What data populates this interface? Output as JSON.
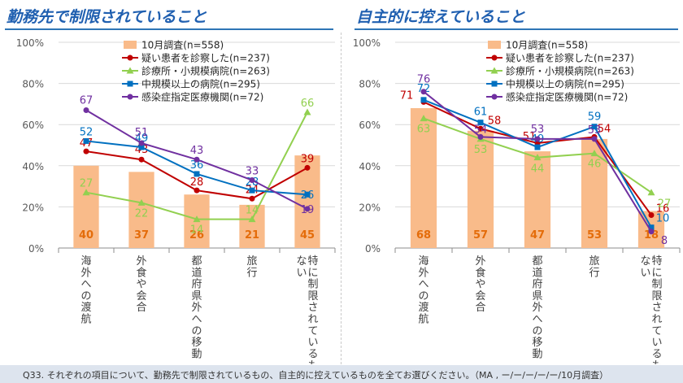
{
  "left_title": "勤務先で制限されていること",
  "right_title": "自主的に控えていること",
  "footer": "Q33. それぞれの項目について、勤務先で制限されているもの、自主的に控えているものを全てお選びください。（MA , ー/ー/ー/ー/ー/10月調査）",
  "colors": {
    "bar": "#f9bb8a",
    "bar_label": "#e46c0a",
    "suspect": "#c00000",
    "clinic": "#92d050",
    "midlarge": "#0070c0",
    "infection": "#7030a0",
    "title": "#1f5fb0",
    "grid": "#d9d9d9"
  },
  "chart_data": [
    {
      "type": "bar",
      "title": "勤務先で制限されていること",
      "categories": [
        "海外への渡航",
        "外食や会合",
        "都道府県外への移動",
        "旅行",
        "特に制限されているものはない"
      ],
      "ylim": [
        0,
        100
      ],
      "y_ticks": [
        "0%",
        "20%",
        "40%",
        "60%",
        "80%",
        "100%"
      ],
      "legend_position": "top-right",
      "series": [
        {
          "name": "10月調査(n=558)",
          "type": "bar",
          "color": "#f9bb8a",
          "values": [
            40,
            37,
            26,
            21,
            45
          ]
        },
        {
          "name": "疑い患者を診察した(n=237)",
          "type": "line",
          "marker": "circle",
          "color": "#c00000",
          "values": [
            47,
            43,
            28,
            24,
            39
          ]
        },
        {
          "name": "診療所・小規模病院(n=263)",
          "type": "line",
          "marker": "triangle",
          "color": "#92d050",
          "values": [
            27,
            22,
            14,
            14,
            66
          ]
        },
        {
          "name": "中規模以上の病院(n=295)",
          "type": "line",
          "marker": "square",
          "color": "#0070c0",
          "values": [
            52,
            49,
            36,
            28,
            26
          ]
        },
        {
          "name": "感染症指定医療機関(n=72)",
          "type": "line",
          "marker": "circle",
          "color": "#7030a0",
          "values": [
            67,
            51,
            43,
            33,
            19
          ]
        }
      ]
    },
    {
      "type": "bar",
      "title": "自主的に控えていること",
      "categories": [
        "海外への渡航",
        "外食や会合",
        "都道府県外への移動",
        "旅行",
        "特に制限されているものはない"
      ],
      "ylim": [
        0,
        100
      ],
      "y_ticks": [
        "0%",
        "20%",
        "40%",
        "60%",
        "80%",
        "100%"
      ],
      "legend_position": "top-right",
      "series": [
        {
          "name": "10月調査(n=558)",
          "type": "bar",
          "color": "#f9bb8a",
          "values": [
            68,
            57,
            47,
            53,
            18
          ]
        },
        {
          "name": "疑い患者を診察した(n=237)",
          "type": "line",
          "marker": "circle",
          "color": "#c00000",
          "values": [
            71,
            58,
            51,
            54,
            16
          ]
        },
        {
          "name": "診療所・小規模病院(n=263)",
          "type": "line",
          "marker": "triangle",
          "color": "#92d050",
          "values": [
            63,
            53,
            44,
            46,
            27
          ]
        },
        {
          "name": "中規模以上の病院(n=295)",
          "type": "line",
          "marker": "square",
          "color": "#0070c0",
          "values": [
            72,
            61,
            49,
            59,
            10
          ]
        },
        {
          "name": "感染症指定医療機関(n=72)",
          "type": "line",
          "marker": "circle",
          "color": "#7030a0",
          "values": [
            76,
            54,
            53,
            53,
            8
          ]
        }
      ]
    }
  ]
}
